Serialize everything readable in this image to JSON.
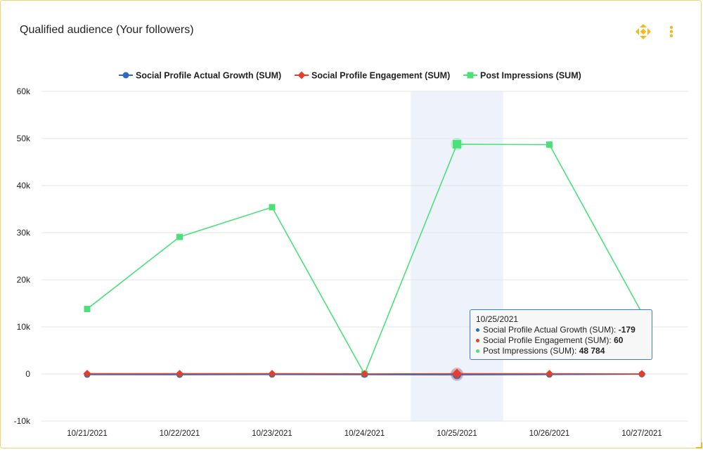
{
  "header": {
    "title": "Qualified audience (Your followers)",
    "move_icon": "move-arrows-icon",
    "menu_icon": "vertical-dots-icon",
    "accent": "#f5b91c"
  },
  "chart_data": {
    "type": "line",
    "title": "Qualified audience (Your followers)",
    "categories": [
      "10/21/2021",
      "10/22/2021",
      "10/23/2021",
      "10/24/2021",
      "10/25/2021",
      "10/26/2021",
      "10/27/2021"
    ],
    "ylim": [
      -10000,
      60000
    ],
    "yticks": [
      -10000,
      0,
      10000,
      20000,
      30000,
      40000,
      50000,
      60000
    ],
    "ytick_labels": [
      "-10k",
      "0",
      "10k",
      "20k",
      "30k",
      "40k",
      "50k",
      "60k"
    ],
    "grid": true,
    "legend_position": "top",
    "highlighted_category": "10/25/2021",
    "series": [
      {
        "name": "Social Profile Actual Growth (SUM)",
        "color": "#2e6bbf",
        "marker": "circle",
        "values": [
          -150,
          -160,
          -120,
          -140,
          -179,
          -130,
          -50
        ]
      },
      {
        "name": "Social Profile Engagement (SUM)",
        "color": "#e0402e",
        "marker": "diamond",
        "values": [
          70,
          65,
          60,
          20,
          60,
          55,
          10
        ]
      },
      {
        "name": "Post Impressions (SUM)",
        "color": "#4be07a",
        "marker": "square",
        "values": [
          13800,
          29100,
          35400,
          0,
          48784,
          48700,
          13000
        ]
      }
    ]
  },
  "tooltip": {
    "date": "10/25/2021",
    "rows": [
      {
        "label": "Social Profile Actual Growth (SUM): ",
        "value": "-179",
        "color": "#2e6bbf"
      },
      {
        "label": "Social Profile Engagement (SUM): ",
        "value": "60",
        "color": "#e0402e"
      },
      {
        "label": "Post Impressions (SUM): ",
        "value": "48 784",
        "color": "#4be07a"
      }
    ]
  }
}
